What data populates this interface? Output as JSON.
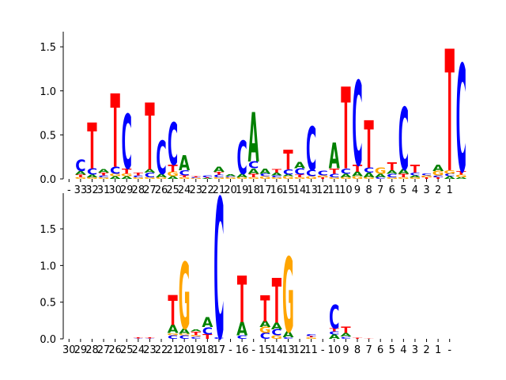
{
  "colors": {
    "A": "#008000",
    "C": "#0000ff",
    "G": "#ffa500",
    "T": "#ff0000",
    "axis": "#000000"
  },
  "chart_data": [
    {
      "type": "sequence_logo",
      "title": "",
      "xlabel": "",
      "ylabel": "",
      "ylim": [
        0,
        1.6
      ],
      "yticks": [
        "0.0",
        "0.5",
        "1.0",
        "1.5"
      ],
      "ytick_values": [
        0,
        0.5,
        1.0,
        1.5
      ],
      "positions": [
        "-",
        "33",
        "32",
        "31",
        "30",
        "29",
        "28",
        "27",
        "26",
        "25",
        "24",
        "23",
        "22",
        "21",
        "20",
        "19",
        "18",
        "17",
        "16",
        "15",
        "14",
        "13",
        "12",
        "11",
        "10",
        "9",
        "8",
        "7",
        "6",
        "5",
        "4",
        "3",
        "2",
        "1"
      ],
      "stacks": [
        [],
        [
          [
            "G",
            0.02
          ],
          [
            "T",
            0.03
          ],
          [
            "A",
            0.04
          ],
          [
            "C",
            0.13
          ]
        ],
        [
          [
            "G",
            0.02
          ],
          [
            "A",
            0.03
          ],
          [
            "C",
            0.07
          ],
          [
            "T",
            0.52
          ]
        ],
        [
          [
            "G",
            0.02
          ],
          [
            "C",
            0.02
          ],
          [
            "T",
            0.03
          ],
          [
            "A",
            0.04
          ]
        ],
        [
          [
            "A",
            0.03
          ],
          [
            "G",
            0.03
          ],
          [
            "C",
            0.08
          ],
          [
            "T",
            0.83
          ]
        ],
        [
          [
            "A",
            0.03
          ],
          [
            "G",
            0.03
          ],
          [
            "T",
            0.06
          ],
          [
            "C",
            0.62
          ]
        ],
        [
          [
            "G",
            0.02
          ],
          [
            "C",
            0.02
          ],
          [
            "T",
            0.03
          ]
        ],
        [
          [
            "G",
            0.02
          ],
          [
            "C",
            0.05
          ],
          [
            "A",
            0.04
          ],
          [
            "T",
            0.76
          ]
        ],
        [
          [
            "G",
            0.02
          ],
          [
            "A",
            0.04
          ],
          [
            "C",
            0.38
          ]
        ],
        [
          [
            "A",
            0.03
          ],
          [
            "G",
            0.05
          ],
          [
            "T",
            0.08
          ],
          [
            "C",
            0.48
          ]
        ],
        [
          [
            "G",
            0.02
          ],
          [
            "T",
            0.02
          ],
          [
            "C",
            0.06
          ],
          [
            "A",
            0.17
          ]
        ],
        [
          [
            "G",
            0.01
          ],
          [
            "C",
            0.01
          ],
          [
            "T",
            0.01
          ]
        ],
        [
          [
            "A",
            0.01
          ],
          [
            "T",
            0.01
          ],
          [
            "C",
            0.02
          ]
        ],
        [
          [
            "G",
            0.02
          ],
          [
            "C",
            0.03
          ],
          [
            "T",
            0.03
          ],
          [
            "A",
            0.06
          ]
        ],
        [
          [
            "G",
            0.02
          ],
          [
            "C",
            0.01
          ],
          [
            "A",
            0.02
          ]
        ],
        [
          [
            "G",
            0.02
          ],
          [
            "A",
            0.04
          ],
          [
            "C",
            0.38
          ]
        ],
        [
          [
            "G",
            0.02
          ],
          [
            "T",
            0.04
          ],
          [
            "A",
            0.06
          ],
          [
            "C",
            0.08
          ],
          [
            "A",
            0.56
          ]
        ],
        [
          [
            "G",
            0.03
          ],
          [
            "C",
            0.03
          ],
          [
            "A",
            0.06
          ]
        ],
        [
          [
            "G",
            0.02
          ],
          [
            "C",
            0.02
          ],
          [
            "A",
            0.03
          ],
          [
            "T",
            0.04
          ]
        ],
        [
          [
            "G",
            0.03
          ],
          [
            "A",
            0.02
          ],
          [
            "C",
            0.06
          ],
          [
            "T",
            0.22
          ]
        ],
        [
          [
            "G",
            0.02
          ],
          [
            "T",
            0.03
          ],
          [
            "C",
            0.07
          ],
          [
            "A",
            0.07
          ]
        ],
        [
          [
            "G",
            0.03
          ],
          [
            "C",
            0.07
          ],
          [
            "C",
            0.5
          ]
        ],
        [
          [
            "T",
            0.02
          ],
          [
            "G",
            0.02
          ],
          [
            "C",
            0.05
          ]
        ],
        [
          [
            "G",
            0.02
          ],
          [
            "C",
            0.04
          ],
          [
            "T",
            0.06
          ],
          [
            "A",
            0.29
          ]
        ],
        [
          [
            "G",
            0.02
          ],
          [
            "A",
            0.04
          ],
          [
            "C",
            0.06
          ],
          [
            "T",
            0.93
          ]
        ],
        [
          [
            "G",
            0.03
          ],
          [
            "A",
            0.05
          ],
          [
            "T",
            0.08
          ],
          [
            "C",
            0.96
          ]
        ],
        [
          [
            "G",
            0.02
          ],
          [
            "A",
            0.05
          ],
          [
            "C",
            0.06
          ],
          [
            "T",
            0.54
          ]
        ],
        [
          [
            "C",
            0.02
          ],
          [
            "A",
            0.04
          ],
          [
            "G",
            0.07
          ]
        ],
        [
          [
            "G",
            0.02
          ],
          [
            "C",
            0.04
          ],
          [
            "A",
            0.04
          ],
          [
            "T",
            0.09
          ]
        ],
        [
          [
            "G",
            0.02
          ],
          [
            "T",
            0.04
          ],
          [
            "A",
            0.05
          ],
          [
            "C",
            0.71
          ]
        ],
        [
          [
            "G",
            0.02
          ],
          [
            "A",
            0.02
          ],
          [
            "C",
            0.03
          ],
          [
            "T",
            0.09
          ]
        ],
        [
          [
            "T",
            0.02
          ],
          [
            "G",
            0.02
          ],
          [
            "C",
            0.02
          ]
        ],
        [
          [
            "T",
            0.02
          ],
          [
            "C",
            0.02
          ],
          [
            "G",
            0.05
          ],
          [
            "A",
            0.07
          ]
        ],
        [
          [
            "A",
            0.03
          ],
          [
            "C",
            0.03
          ],
          [
            "G",
            0.04
          ],
          [
            "T",
            1.38
          ]
        ],
        [
          [
            "A",
            0.02
          ],
          [
            "G",
            0.03
          ],
          [
            "T",
            0.04
          ],
          [
            "C",
            1.22
          ]
        ]
      ]
    },
    {
      "type": "sequence_logo",
      "title": "",
      "xlabel": "",
      "ylabel": "",
      "ylim": [
        0,
        1.9
      ],
      "yticks": [
        "0.0",
        "0.5",
        "1.0",
        "1.5"
      ],
      "ytick_values": [
        0,
        0.5,
        1.0,
        1.5
      ],
      "positions": [
        "30",
        "29",
        "28",
        "27",
        "26",
        "25",
        "24",
        "23",
        "22",
        "21",
        "20",
        "19",
        "18",
        "17",
        "-",
        "16",
        "-",
        "15",
        "14",
        "13",
        "12",
        "11",
        "-",
        "10",
        "9",
        "8",
        "7",
        "6",
        "5",
        "4",
        "3",
        "2",
        "1",
        "-"
      ],
      "stacks": [
        [],
        [],
        [],
        [],
        [],
        [
          [
            "A",
            0.003
          ]
        ],
        [
          [
            "C",
            0.005
          ],
          [
            "T",
            0.01
          ]
        ],
        [
          [
            "C",
            0.005
          ],
          [
            "T",
            0.01
          ]
        ],
        [],
        [
          [
            "C",
            0.05
          ],
          [
            "G",
            0.03
          ],
          [
            "A",
            0.11
          ],
          [
            "T",
            0.41
          ]
        ],
        [
          [
            "C",
            0.05
          ],
          [
            "G",
            0.02
          ],
          [
            "A",
            0.07
          ],
          [
            "G",
            0.91
          ]
        ],
        [
          [
            "C",
            0.03
          ],
          [
            "G",
            0.02
          ],
          [
            "T",
            0.05
          ],
          [
            "A",
            0.03
          ]
        ],
        [
          [
            "T",
            0.06
          ],
          [
            "C",
            0.1
          ],
          [
            "A",
            0.13
          ]
        ],
        [
          [
            "C",
            0.02
          ],
          [
            "C",
            1.91
          ]
        ],
        [],
        [
          [
            "C",
            0.05
          ],
          [
            "A",
            0.18
          ],
          [
            "T",
            0.63
          ]
        ],
        [],
        [
          [
            "C",
            0.08
          ],
          [
            "G",
            0.08
          ],
          [
            "A",
            0.08
          ],
          [
            "T",
            0.36
          ]
        ],
        [
          [
            "G",
            0.05
          ],
          [
            "C",
            0.08
          ],
          [
            "A",
            0.09
          ],
          [
            "T",
            0.61
          ]
        ],
        [
          [
            "C",
            0.02
          ],
          [
            "A",
            0.08
          ],
          [
            "G",
            1.02
          ]
        ],
        [],
        [
          [
            "G",
            0.02
          ],
          [
            "T",
            0.02
          ],
          [
            "C",
            0.03
          ]
        ],
        [],
        [
          [
            "A",
            0.06
          ],
          [
            "C",
            0.04
          ],
          [
            "T",
            0.04
          ],
          [
            "C",
            0.32
          ]
        ],
        [
          [
            "C",
            0.03
          ],
          [
            "A",
            0.05
          ],
          [
            "T",
            0.08
          ]
        ],
        [
          [
            "T",
            0.01
          ]
        ],
        [
          [
            "T",
            0.005
          ]
        ],
        [],
        [],
        [],
        [],
        [],
        [],
        []
      ]
    }
  ]
}
